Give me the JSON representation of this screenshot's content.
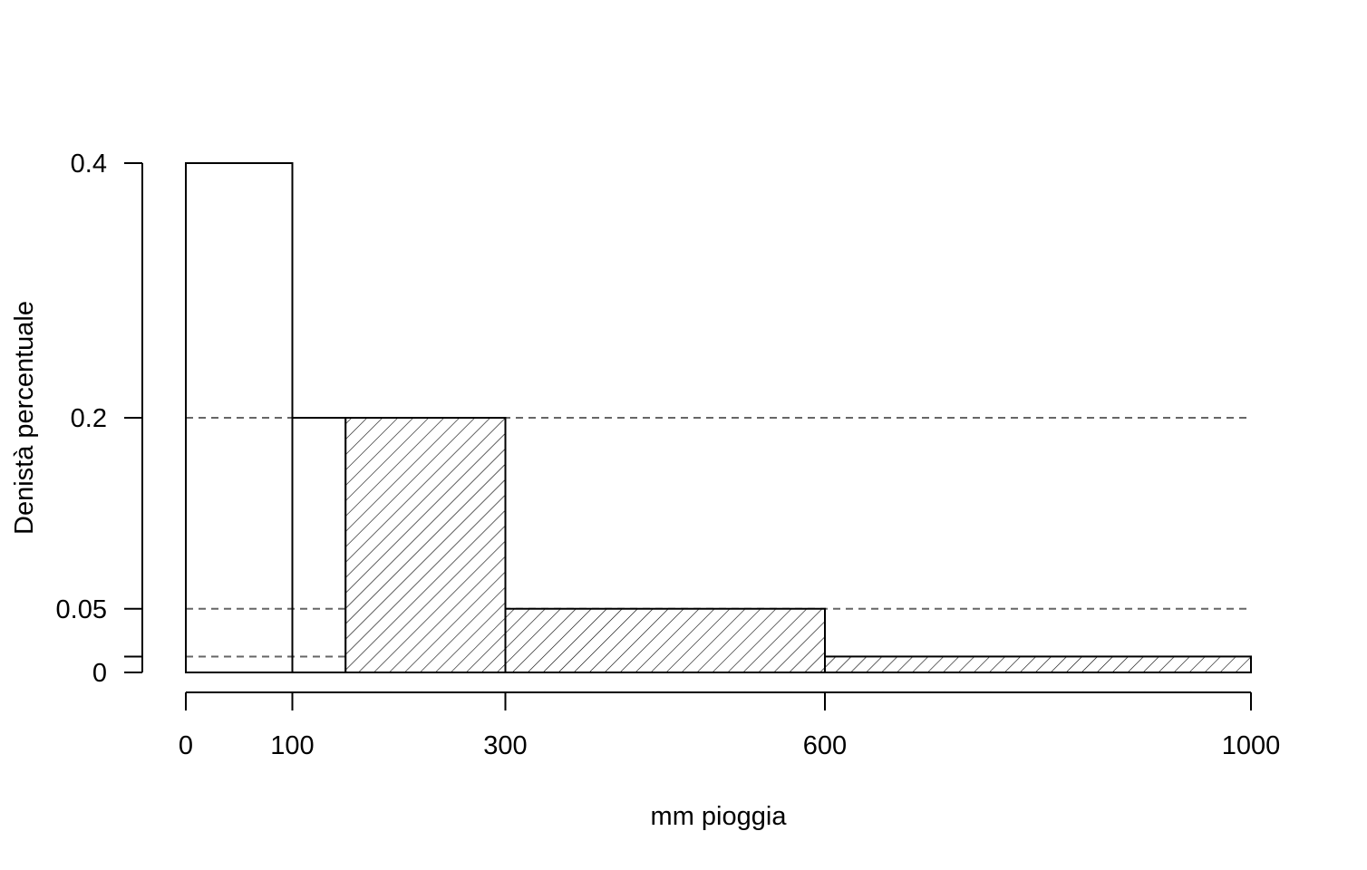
{
  "chart_data": {
    "type": "bar",
    "title": "",
    "xlabel": "mm pioggia",
    "ylabel": "Denistà percentuale",
    "xlim": [
      0,
      1000
    ],
    "ylim": [
      0,
      0.4
    ],
    "x_ticks": [
      {
        "value": 0,
        "label": "0"
      },
      {
        "value": 100,
        "label": "100"
      },
      {
        "value": 300,
        "label": "300"
      },
      {
        "value": 600,
        "label": "600"
      },
      {
        "value": 1000,
        "label": "1000"
      }
    ],
    "y_ticks": [
      {
        "value": 0,
        "label": "0"
      },
      {
        "value": 0.0125,
        "label": ""
      },
      {
        "value": 0.05,
        "label": "0.05"
      },
      {
        "value": 0.2,
        "label": "0.2"
      },
      {
        "value": 0.4,
        "label": "0.4"
      }
    ],
    "bars": [
      {
        "x0": 0,
        "x1": 100,
        "density": 0.4,
        "hatched": false
      },
      {
        "x0": 100,
        "x1": 150,
        "density": 0.2,
        "hatched": false
      },
      {
        "x0": 150,
        "x1": 300,
        "density": 0.2,
        "hatched": true
      },
      {
        "x0": 300,
        "x1": 600,
        "density": 0.05,
        "hatched": true
      },
      {
        "x0": 600,
        "x1": 1000,
        "density": 0.0125,
        "hatched": true
      }
    ],
    "reference_lines": [
      0.2,
      0.05,
      0.0125
    ],
    "grid": false,
    "colors": {
      "outline": "#000000",
      "reference_line": "#666666",
      "fill": "#ffffff"
    }
  }
}
